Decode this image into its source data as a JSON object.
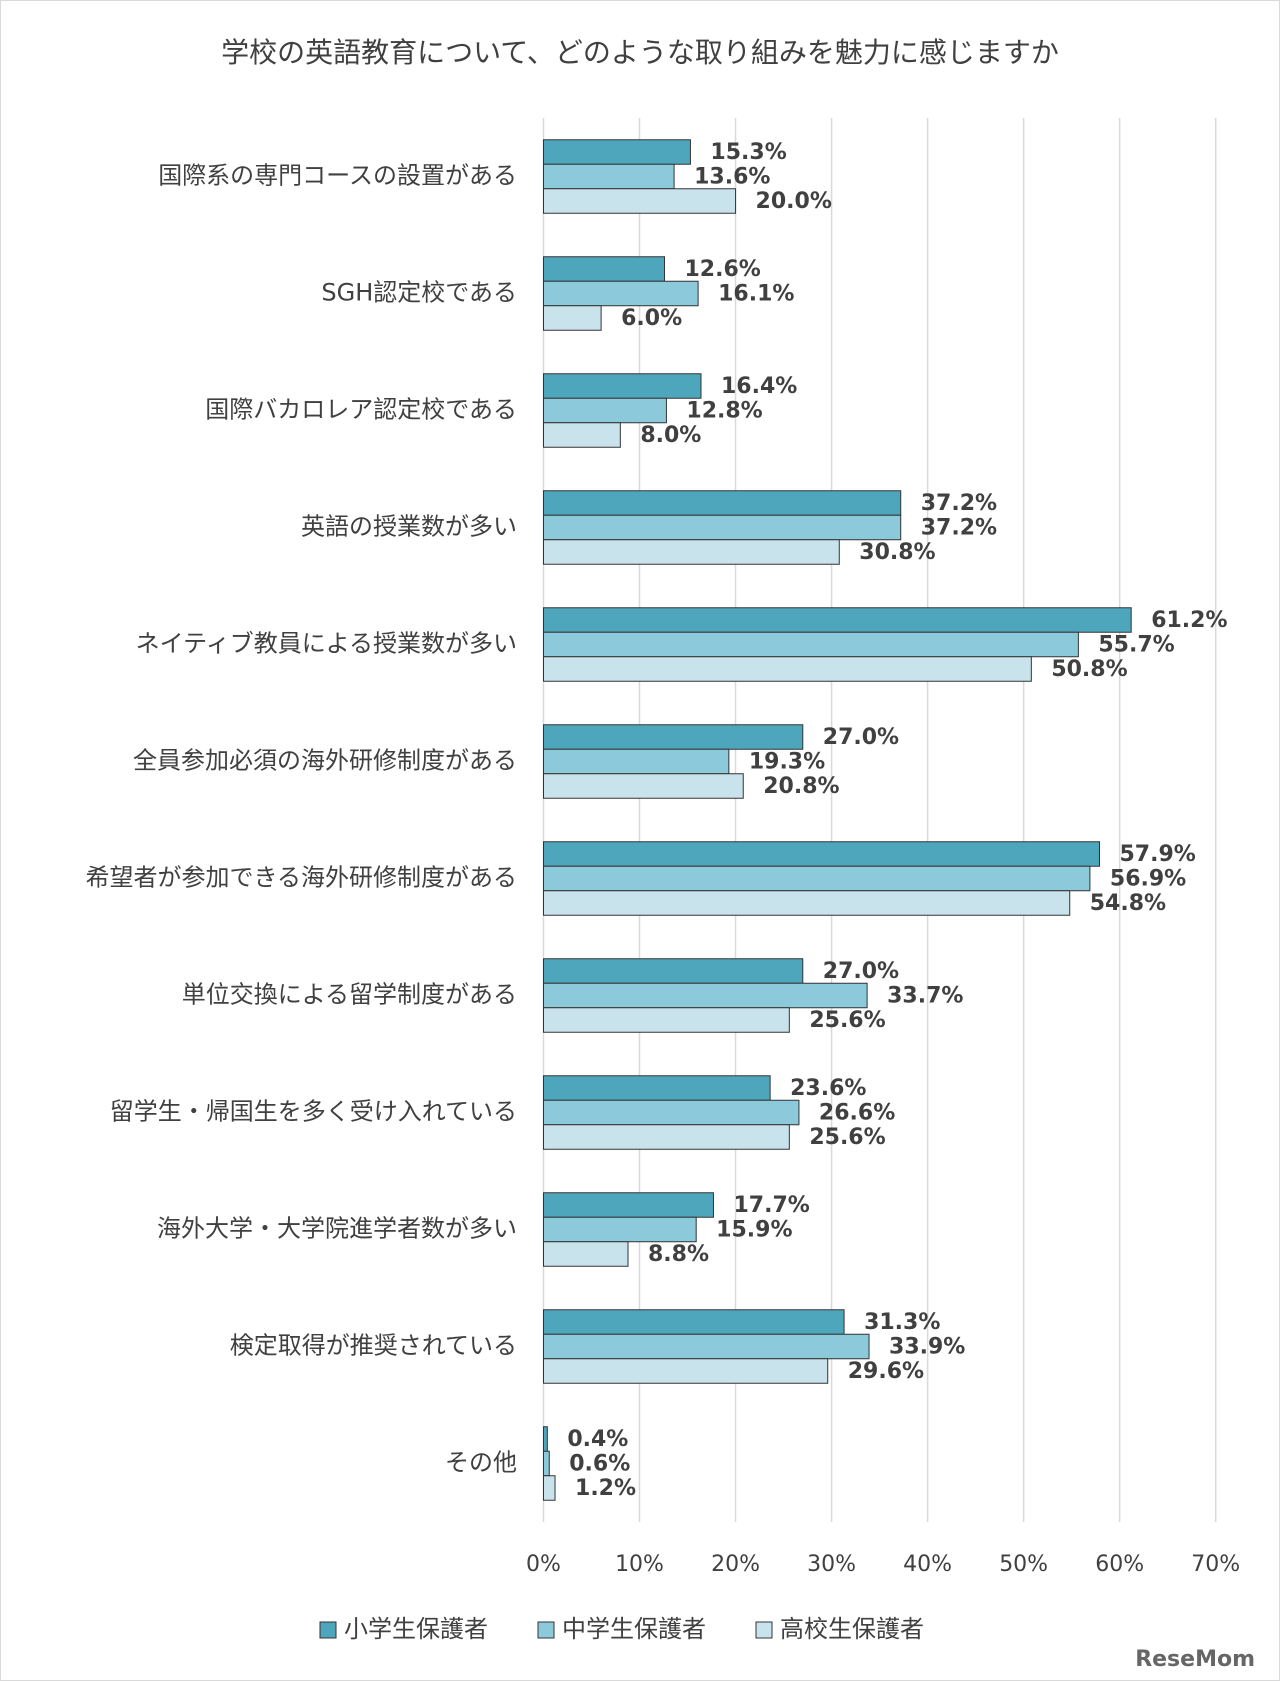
{
  "chart_data": {
    "type": "bar",
    "orientation": "horizontal",
    "title": "学校の英語教育について、どのような取り組みを魅力に感じますか",
    "categories": [
      "国際系の専門コースの設置がある",
      "SGH認定校である",
      "国際バカロレア認定校である",
      "英語の授業数が多い",
      "ネイティブ教員による授業数が多い",
      "全員参加必須の海外研修制度がある",
      "希望者が参加できる海外研修制度がある",
      "単位交換による留学制度がある",
      "留学生・帰国生を多く受け入れている",
      "海外大学・大学院進学者数が多い",
      "検定取得が推奨されている",
      "その他"
    ],
    "series": [
      {
        "name": "小学生保護者",
        "color": "#4ea6bd",
        "values": [
          15.3,
          12.6,
          16.4,
          37.2,
          61.2,
          27.0,
          57.9,
          27.0,
          23.6,
          17.7,
          31.3,
          0.4
        ],
        "value_labels": [
          "15.3%",
          "12.6%",
          "16.4%",
          "37.2%",
          "61.2%",
          "27.0%",
          "57.9%",
          "27.0%",
          "23.6%",
          "17.7%",
          "31.3%",
          "0.4%"
        ]
      },
      {
        "name": "中学生保護者",
        "color": "#8ccadb",
        "values": [
          13.6,
          16.1,
          12.8,
          37.2,
          55.7,
          19.3,
          56.9,
          33.7,
          26.6,
          15.9,
          33.9,
          0.6
        ],
        "value_labels": [
          "13.6%",
          "16.1%",
          "12.8%",
          "37.2%",
          "55.7%",
          "19.3%",
          "56.9%",
          "33.7%",
          "26.6%",
          "15.9%",
          "33.9%",
          "0.6%"
        ]
      },
      {
        "name": "高校生保護者",
        "color": "#c9e3ec",
        "values": [
          20.0,
          6.0,
          8.0,
          30.8,
          50.8,
          20.8,
          54.8,
          25.6,
          25.6,
          8.8,
          29.6,
          1.2
        ],
        "value_labels": [
          "20.0%",
          "6.0%",
          "8.0%",
          "30.8%",
          "50.8%",
          "20.8%",
          "54.8%",
          "25.6%",
          "25.6%",
          "8.8%",
          "29.6%",
          "1.2%"
        ]
      }
    ],
    "xlim": [
      0,
      70
    ],
    "xticks": [
      {
        "value": 0,
        "label": "0%"
      },
      {
        "value": 10,
        "label": "10%"
      },
      {
        "value": 20,
        "label": "20%"
      },
      {
        "value": 30,
        "label": "30%"
      },
      {
        "value": 40,
        "label": "40%"
      },
      {
        "value": 50,
        "label": "50%"
      },
      {
        "value": 60,
        "label": "60%"
      },
      {
        "value": 70,
        "label": "70%"
      }
    ],
    "grid": true,
    "legend": "bottom"
  },
  "watermark": "ReseMom"
}
